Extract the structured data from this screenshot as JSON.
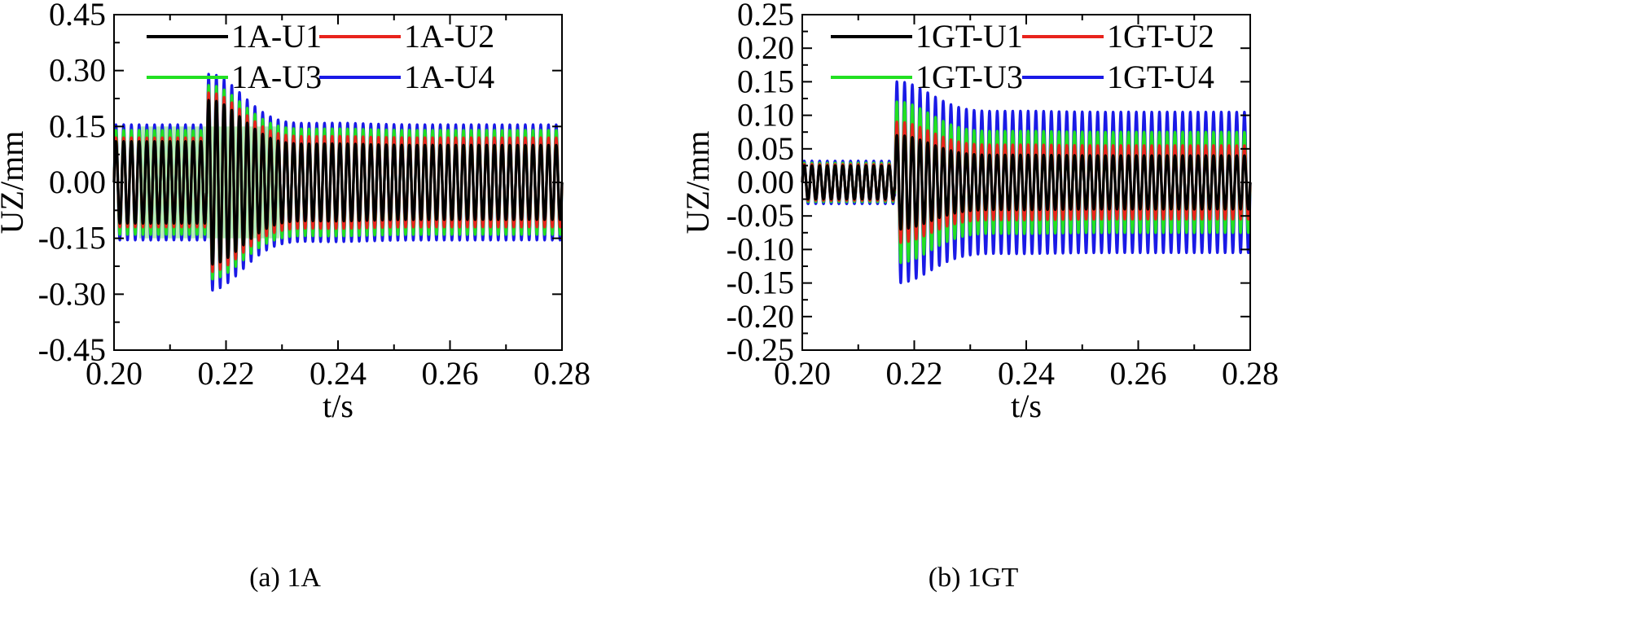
{
  "chart_data": [
    {
      "type": "line",
      "panel_caption": "(a) 1A",
      "xlabel": "t/s",
      "ylabel": "UZ/mm",
      "xlim": [
        0.2,
        0.28
      ],
      "ylim": [
        -0.45,
        0.45
      ],
      "xticks": [
        "0.20",
        "0.22",
        "0.24",
        "0.26",
        "0.28"
      ],
      "yticks": [
        "0.45",
        "0.30",
        "0.15",
        "0.00",
        "-0.15",
        "-0.30",
        "-0.45"
      ],
      "legend": [
        "1A-U1",
        "1A-U2",
        "1A-U3",
        "1A-U4"
      ],
      "shaded_band": {
        "x": [
          0.2045,
          0.2295
        ],
        "y": [
          -0.15,
          0.15
        ],
        "color": "#b8f0b8"
      },
      "oscillation": {
        "start": 0.2,
        "end": 0.28,
        "cycles": 58,
        "transient_start": 0.2165
      },
      "series": [
        {
          "name": "1A-U1",
          "color": "#000000",
          "amp_before": 0.11,
          "amp_after": 0.1,
          "transient_peak": 0.22
        },
        {
          "name": "1A-U2",
          "color": "#e8231c",
          "amp_before": 0.12,
          "amp_after": 0.12,
          "transient_peak": 0.24
        },
        {
          "name": "1A-U3",
          "color": "#22e022",
          "amp_before": 0.14,
          "amp_after": 0.14,
          "transient_peak": 0.26
        },
        {
          "name": "1A-U4",
          "color": "#1a1ae6",
          "amp_before": 0.155,
          "amp_after": 0.155,
          "transient_peak": 0.29
        }
      ]
    },
    {
      "type": "line",
      "panel_caption": "(b) 1GT",
      "xlabel": "t/s",
      "ylabel": "UZ/mm",
      "xlim": [
        0.2,
        0.28
      ],
      "ylim": [
        -0.25,
        0.25
      ],
      "xticks": [
        "0.20",
        "0.22",
        "0.24",
        "0.26",
        "0.28"
      ],
      "yticks": [
        "0.25",
        "0.20",
        "0.15",
        "0.10",
        "0.05",
        "0.00",
        "-0.05",
        "-0.10",
        "-0.15",
        "-0.20",
        "-0.25"
      ],
      "legend": [
        "1GT-U1",
        "1GT-U2",
        "1GT-U3",
        "1GT-U4"
      ],
      "oscillation": {
        "start": 0.2,
        "end": 0.28,
        "cycles": 58,
        "transient_start": 0.2165
      },
      "series": [
        {
          "name": "1GT-U1",
          "color": "#000000",
          "amp_before": 0.025,
          "amp_after": 0.04,
          "transient_peak": 0.07
        },
        {
          "name": "1GT-U2",
          "color": "#e8231c",
          "amp_before": 0.027,
          "amp_after": 0.055,
          "transient_peak": 0.09
        },
        {
          "name": "1GT-U3",
          "color": "#22e022",
          "amp_before": 0.029,
          "amp_after": 0.075,
          "transient_peak": 0.12
        },
        {
          "name": "1GT-U4",
          "color": "#1a1ae6",
          "amp_before": 0.032,
          "amp_after": 0.105,
          "transient_peak": 0.15
        }
      ]
    }
  ]
}
